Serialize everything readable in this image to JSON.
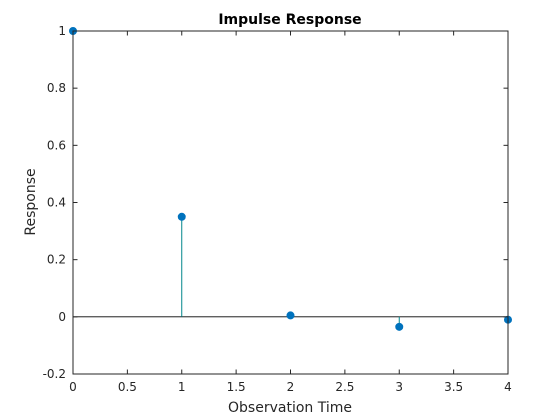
{
  "chart_data": {
    "type": "stem",
    "title": "Impulse Response",
    "xlabel": "Observation Time",
    "ylabel": "Response",
    "x": [
      0,
      1,
      2,
      3,
      4
    ],
    "y": [
      1.0,
      0.35,
      0.005,
      -0.035,
      -0.01
    ],
    "xlim": [
      0,
      4
    ],
    "ylim": [
      -0.2,
      1
    ],
    "xticks": [
      0,
      0.5,
      1,
      1.5,
      2,
      2.5,
      3,
      3.5,
      4
    ],
    "xtick_labels": [
      "0",
      "0.5",
      "1",
      "1.5",
      "2",
      "2.5",
      "3",
      "3.5",
      "4"
    ],
    "yticks": [
      -0.2,
      0,
      0.2,
      0.4,
      0.6,
      0.8,
      1
    ],
    "ytick_labels": [
      "-0.2",
      "0",
      "0.2",
      "0.4",
      "0.6",
      "0.8",
      "1"
    ],
    "grid": false,
    "baseline": 0,
    "colors": {
      "stem": "#00868B",
      "marker": "#0072BD",
      "axis": "#262626",
      "baseline": "#000000"
    }
  }
}
